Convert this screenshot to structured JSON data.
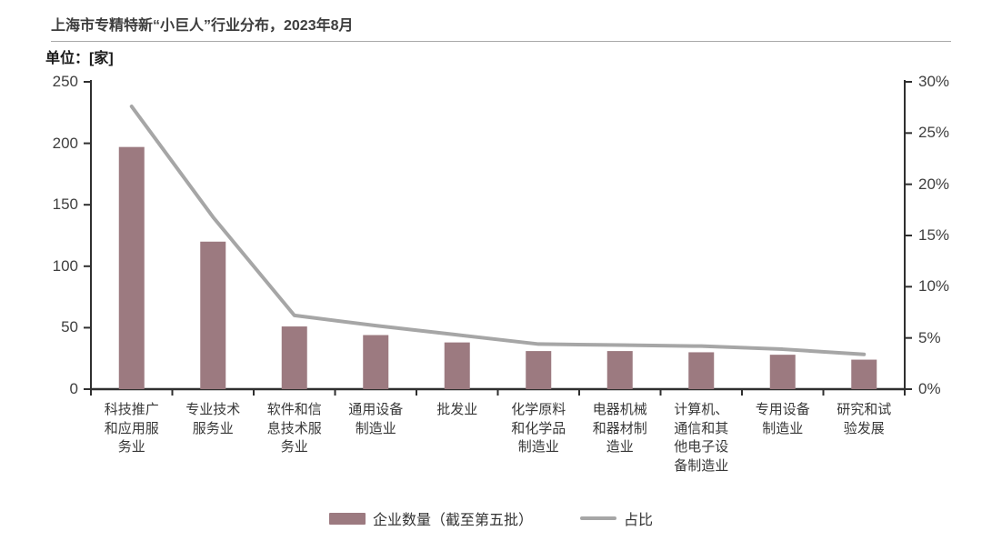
{
  "header": {
    "title": "上海市专精特新“小巨人”行业分布，2023年8月",
    "unit_label": "单位：[家]"
  },
  "colors": {
    "bar": "#9c7a80",
    "line": "#a6a6a6",
    "axis": "#2f2f2f",
    "text": "#3f3f3f"
  },
  "chart_data": {
    "type": "bar",
    "subtype": "combo-bar-line",
    "title": "上海市专精特新“小巨人”行业分布，2023年8月",
    "ylabel_left": "单位：[家]",
    "ylabel_right": "占比(%)",
    "grid": false,
    "legend_position": "bottom",
    "categories": [
      "科技推广和应用服务业",
      "专业技术服务业",
      "软件和信息技术服务业",
      "通用设备制造业",
      "批发业",
      "化学原料和化学品制造业",
      "电器机械和器材制造业",
      "计算机、通信和其他电子设备制造业",
      "专用设备制造业",
      "研究和试验发展"
    ],
    "series": [
      {
        "name": "企业数量（截至第五批）",
        "type": "bar",
        "axis": "left",
        "color": "#9c7a80",
        "values": [
          197,
          120,
          51,
          44,
          38,
          31,
          31,
          30,
          28,
          24
        ]
      },
      {
        "name": "占比",
        "type": "line",
        "axis": "right",
        "color": "#a6a6a6",
        "unit": "%",
        "values": [
          27.6,
          16.8,
          7.2,
          6.2,
          5.3,
          4.4,
          4.3,
          4.2,
          3.9,
          3.4
        ]
      }
    ],
    "left_axis": {
      "range": [
        0,
        250
      ],
      "tick_values": [
        0,
        50,
        100,
        150,
        200,
        250
      ],
      "tick_labels": [
        "0",
        "50",
        "100",
        "150",
        "200",
        "250"
      ]
    },
    "right_axis": {
      "range": [
        0,
        30
      ],
      "tick_values": [
        0,
        5,
        10,
        15,
        20,
        25,
        30
      ],
      "tick_labels": [
        "0%",
        "5%",
        "10%",
        "15%",
        "20%",
        "25%",
        "30%"
      ]
    }
  }
}
